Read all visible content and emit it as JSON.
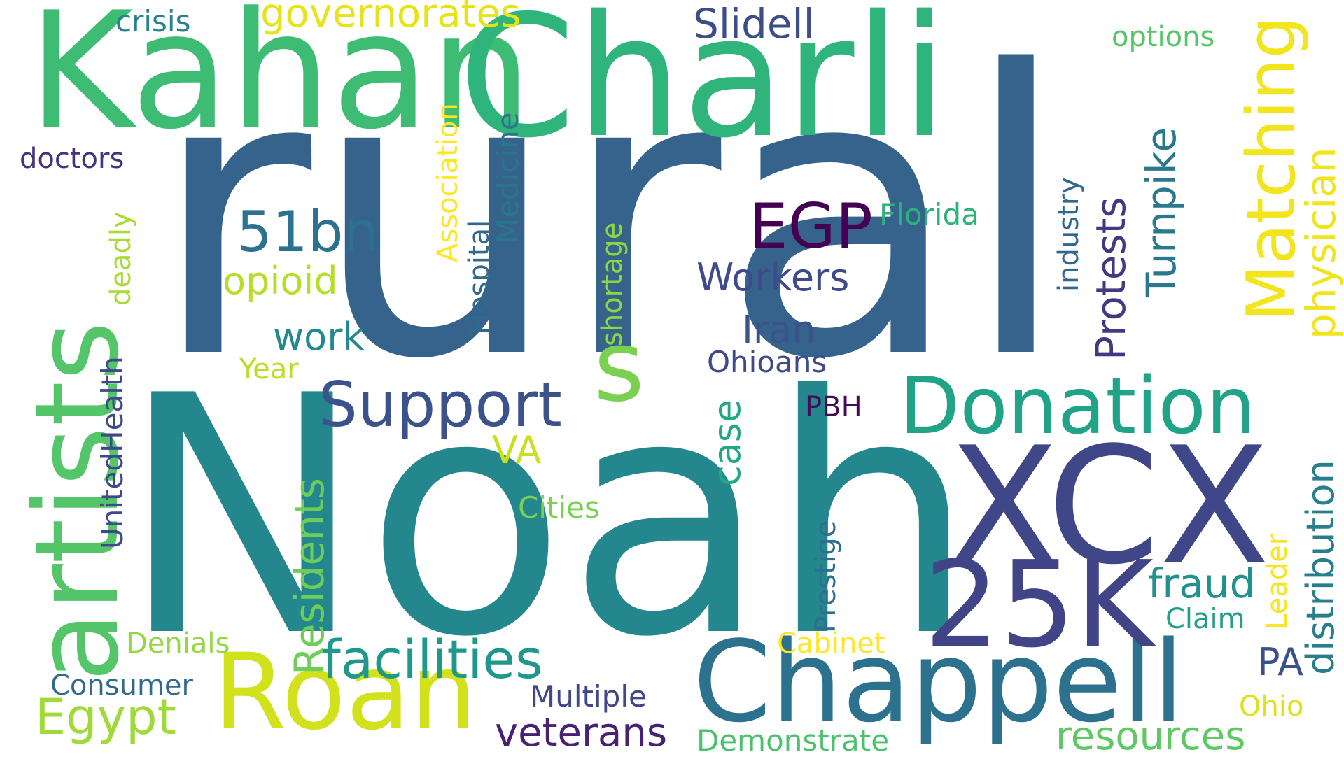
{
  "words": [
    {
      "text": "rural",
      "color": "#35638c"
    },
    {
      "text": "Noah",
      "color": "#24878d"
    },
    {
      "text": "Kahan",
      "color": "#3fbc73"
    },
    {
      "text": "Charli",
      "color": "#2fb47c"
    },
    {
      "text": "artists",
      "color": "#54c568"
    },
    {
      "text": "XCX",
      "color": "#404788"
    },
    {
      "text": "Chappell",
      "color": "#2c718e"
    },
    {
      "text": "Roan",
      "color": "#d1e11c"
    },
    {
      "text": "Donation",
      "color": "#20a386"
    },
    {
      "text": "25K",
      "color": "#414487"
    },
    {
      "text": "Matching",
      "color": "#f2e51d"
    },
    {
      "text": "s",
      "color": "#7ad151"
    },
    {
      "text": "Support",
      "color": "#3b528b"
    },
    {
      "text": "facilities",
      "color": "#1f988b"
    },
    {
      "text": "EGP",
      "color": "#440154"
    },
    {
      "text": "51bn",
      "color": "#2c718e"
    },
    {
      "text": "physician",
      "color": "#f0e51c"
    },
    {
      "text": "Protests",
      "color": "#453781"
    },
    {
      "text": "Turnpike",
      "color": "#2a788e"
    },
    {
      "text": "Slidell",
      "color": "#3d4d8a"
    },
    {
      "text": "governorates",
      "color": "#e5e419"
    },
    {
      "text": "Egypt",
      "color": "#a0da39"
    },
    {
      "text": "resources",
      "color": "#5ec962"
    },
    {
      "text": "veterans",
      "color": "#482173"
    },
    {
      "text": "distribution",
      "color": "#277f8e"
    },
    {
      "text": "Residents",
      "color": "#6ccd5a"
    },
    {
      "text": "Workers",
      "color": "#3e4a89"
    },
    {
      "text": "opioid",
      "color": "#b5de2b"
    },
    {
      "text": "fraud",
      "color": "#21918c"
    },
    {
      "text": "Iran",
      "color": "#3a538b"
    },
    {
      "text": "work",
      "color": "#23898e"
    },
    {
      "text": "case",
      "color": "#22a884"
    },
    {
      "text": "Association",
      "color": "#fde725"
    },
    {
      "text": "Medicine",
      "color": "#2a768e"
    },
    {
      "text": "Hospital",
      "color": "#31688e"
    },
    {
      "text": "UnitedHealth",
      "color": "#3f4889"
    },
    {
      "text": "Florida",
      "color": "#2db27d"
    },
    {
      "text": "industry",
      "color": "#31688e"
    },
    {
      "text": "Consumer",
      "color": "#306a8e"
    },
    {
      "text": "Multiple",
      "color": "#404688"
    },
    {
      "text": "Demonstrate",
      "color": "#4ac16d"
    },
    {
      "text": "VA",
      "color": "#c8e020"
    },
    {
      "text": "shortage",
      "color": "#8bd646"
    },
    {
      "text": "deadly",
      "color": "#a8db34"
    },
    {
      "text": "Prestige",
      "color": "#2e6e8e"
    },
    {
      "text": "Cabinet",
      "color": "#fde725"
    },
    {
      "text": "Ohioans",
      "color": "#3e4989"
    },
    {
      "text": "Cities",
      "color": "#7ad151"
    },
    {
      "text": "Denials",
      "color": "#93d741"
    },
    {
      "text": "Leader",
      "color": "#f6e620"
    },
    {
      "text": "crisis",
      "color": "#26828e"
    },
    {
      "text": "doctors",
      "color": "#46327e"
    },
    {
      "text": "Claim",
      "color": "#1fa088"
    },
    {
      "text": "options",
      "color": "#55c667"
    },
    {
      "text": "PA",
      "color": "#3b518b"
    },
    {
      "text": "PBH",
      "color": "#450b57"
    },
    {
      "text": "Year",
      "color": "#b8de29"
    },
    {
      "text": "Ohio",
      "color": "#dde318"
    }
  ]
}
